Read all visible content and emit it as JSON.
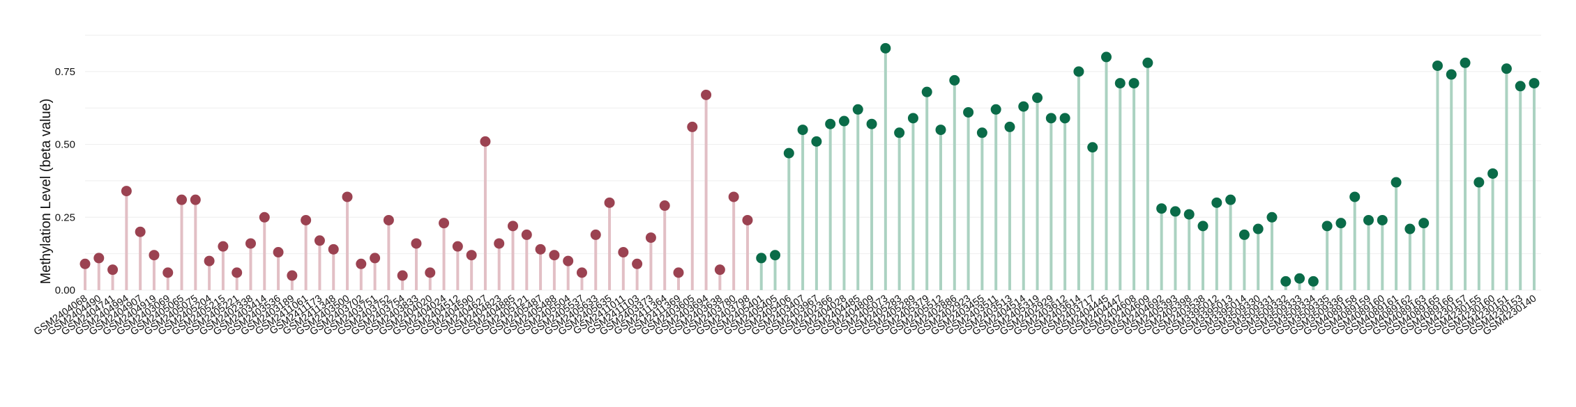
{
  "chart_data": {
    "type": "lollipop",
    "title": "",
    "xlabel": "",
    "ylabel": "Methylation Level (beta value)",
    "ylim": [
      0,
      0.9
    ],
    "yticks": [
      0.0,
      0.25,
      0.5,
      0.75
    ],
    "ytick_labels": [
      "0.00",
      "0.25",
      "0.50",
      "0.75"
    ],
    "grid": "horizontal",
    "legend": "none",
    "colors": {
      "group_a_dot": "#9b4251",
      "group_a_stem": "#e2bfc5",
      "group_b_dot": "#0a6b48",
      "group_b_stem": "#abd2c1"
    },
    "series": [
      {
        "categories": [
          "GSM2404068",
          "GSM2404490",
          "GSM2404741",
          "GSM2404994",
          "GSM2404907",
          "GSM2404919",
          "GSM2403069",
          "GSM2405065",
          "GSM2405075",
          "GSM2405204",
          "GSM2405215",
          "GSM2405221",
          "GSM2402338",
          "GSM2403414",
          "GSM2403536",
          "GSM2403189",
          "GSM2411061",
          "GSM2411173",
          "GSM2411348",
          "GSM2403500",
          "GSM2403702",
          "GSM2403751",
          "GSM2403752",
          "GSM2403754",
          "GSM2403833",
          "GSM2404020",
          "GSM2404024",
          "GSM2404512",
          "GSM2404590",
          "GSM2404627",
          "GSM2404823",
          "GSM2404885",
          "GSM2405121",
          "GSM2405487",
          "GSM2405488",
          "GSM2405504",
          "GSM2405537",
          "GSM2405633",
          "GSM2405635",
          "GSM2411011",
          "GSM2411103",
          "GSM2403373",
          "GSM2411364",
          "GSM2411369",
          "GSM2403605",
          "GSM2403694",
          "GSM2403638",
          "GSM2403780",
          "GSM2403798"
        ],
        "values": [
          0.09,
          0.11,
          0.07,
          0.34,
          0.2,
          0.12,
          0.06,
          0.31,
          0.31,
          0.1,
          0.15,
          0.06,
          0.16,
          0.25,
          0.13,
          0.05,
          0.24,
          0.17,
          0.14,
          0.32,
          0.09,
          0.11,
          0.24,
          0.05,
          0.16,
          0.06,
          0.23,
          0.15,
          0.12,
          0.51,
          0.16,
          0.22,
          0.19,
          0.14,
          0.12,
          0.1,
          0.06,
          0.19,
          0.3,
          0.13,
          0.09,
          0.18,
          0.29,
          0.06,
          0.56,
          0.67,
          0.07,
          0.32,
          0.24
        ]
      },
      {
        "categories": [
          "GSM2405401",
          "GSM2405405",
          "GSM2405406",
          "GSM2403407",
          "GSM2403967",
          "GSM2402366",
          "GSM2404028",
          "GSM2404485",
          "GSM2404809",
          "GSM2405073",
          "GSM2405283",
          "GSM2405289",
          "GSM2405379",
          "GSM2405512",
          "GSM2402886",
          "GSM2402923",
          "GSM2403455",
          "GSM2403511",
          "GSM2403513",
          "GSM2404514",
          "GSM2405319",
          "GSM2402929",
          "GSM2403612",
          "GSM2403614",
          "GSM2403717",
          "GSM2404445",
          "GSM2404447",
          "GSM2404608",
          "GSM2404609",
          "GSM2404692",
          "GSM2405393",
          "GSM2405398",
          "GSM2403538",
          "GSM3395012",
          "GSM3395013",
          "GSM3395014",
          "GSM3509330",
          "GSM3509331",
          "GSM3509332",
          "GSM3509333",
          "GSM3509334",
          "GSM3509335",
          "GSM3509336",
          "GSM4089158",
          "GSM4089159",
          "GSM4089160",
          "GSM4089161",
          "GSM4089162",
          "GSM4089163",
          "GSM4089165",
          "GSM4089166",
          "GSM4230157",
          "GSM4230155",
          "GSM4230160",
          "GSM4230151",
          "GSM4230153",
          "GSM4230140"
        ],
        "values": [
          0.11,
          0.12,
          0.47,
          0.55,
          0.51,
          0.57,
          0.58,
          0.62,
          0.57,
          0.83,
          0.54,
          0.59,
          0.68,
          0.55,
          0.72,
          0.61,
          0.54,
          0.62,
          0.56,
          0.63,
          0.66,
          0.59,
          0.59,
          0.75,
          0.49,
          0.8,
          0.71,
          0.71,
          0.78,
          0.28,
          0.27,
          0.26,
          0.22,
          0.3,
          0.31,
          0.19,
          0.21,
          0.25,
          0.03,
          0.04,
          0.03,
          0.22,
          0.23,
          0.32,
          0.24,
          0.24,
          0.37,
          0.21,
          0.23,
          0.77,
          0.74,
          0.78,
          0.37,
          0.4,
          0.76,
          0.7,
          0.71
        ]
      }
    ]
  }
}
